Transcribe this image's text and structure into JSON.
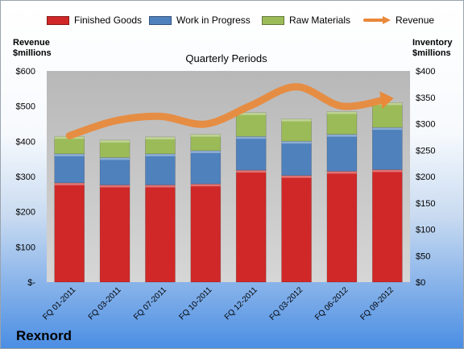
{
  "chart_data": {
    "type": "bar",
    "subtitle": "Quarterly Periods",
    "categories": [
      "FQ 01-2011",
      "FQ 03-2011",
      "FQ 07-2011",
      "FQ 10-2011",
      "FQ 12-2011",
      "FQ 03-2012",
      "FQ 06-2012",
      "FQ 09-2012"
    ],
    "series": [
      {
        "name": "Finished Goods",
        "color": "#d02828",
        "axis": "inventory",
        "values": [
          188,
          184,
          184,
          186,
          212,
          202,
          210,
          213
        ]
      },
      {
        "name": "Work in Progress",
        "color": "#4f81bd",
        "axis": "inventory",
        "values": [
          55,
          52,
          59,
          63,
          64,
          65,
          70,
          80
        ]
      },
      {
        "name": "Raw Materials",
        "color": "#9bbb59",
        "axis": "inventory",
        "values": [
          33,
          33,
          32,
          31,
          45,
          42,
          43,
          47
        ]
      }
    ],
    "line_series": [
      {
        "name": "Revenue",
        "color": "#e9893a",
        "axis": "revenue",
        "values": [
          416,
          458,
          471,
          449,
          502,
          555,
          500,
          520
        ]
      }
    ],
    "left_axis": {
      "label": "Revenue\n$millions",
      "ylim": [
        0,
        600
      ],
      "ticks": [
        "$-",
        "$100",
        "$200",
        "$300",
        "$400",
        "$500",
        "$600"
      ]
    },
    "right_axis": {
      "label": "Inventory\n$millions",
      "ylim": [
        0,
        400
      ],
      "ticks": [
        "$0",
        "$50",
        "$100",
        "$150",
        "$200",
        "$250",
        "$300",
        "$350",
        "$400"
      ]
    },
    "stacked": true,
    "grid": false,
    "legend_position": "top",
    "plot_area_color": "#c4c4c4"
  },
  "legend": {
    "items": [
      {
        "label": "Finished Goods",
        "kind": "bar",
        "color": "#d02828"
      },
      {
        "label": "Work in Progress",
        "kind": "bar",
        "color": "#4f81bd"
      },
      {
        "label": "Raw Materials",
        "kind": "bar",
        "color": "#9bbb59"
      },
      {
        "label": "Revenue",
        "kind": "line",
        "color": "#e9893a"
      }
    ]
  },
  "company_name": "Rexnord"
}
